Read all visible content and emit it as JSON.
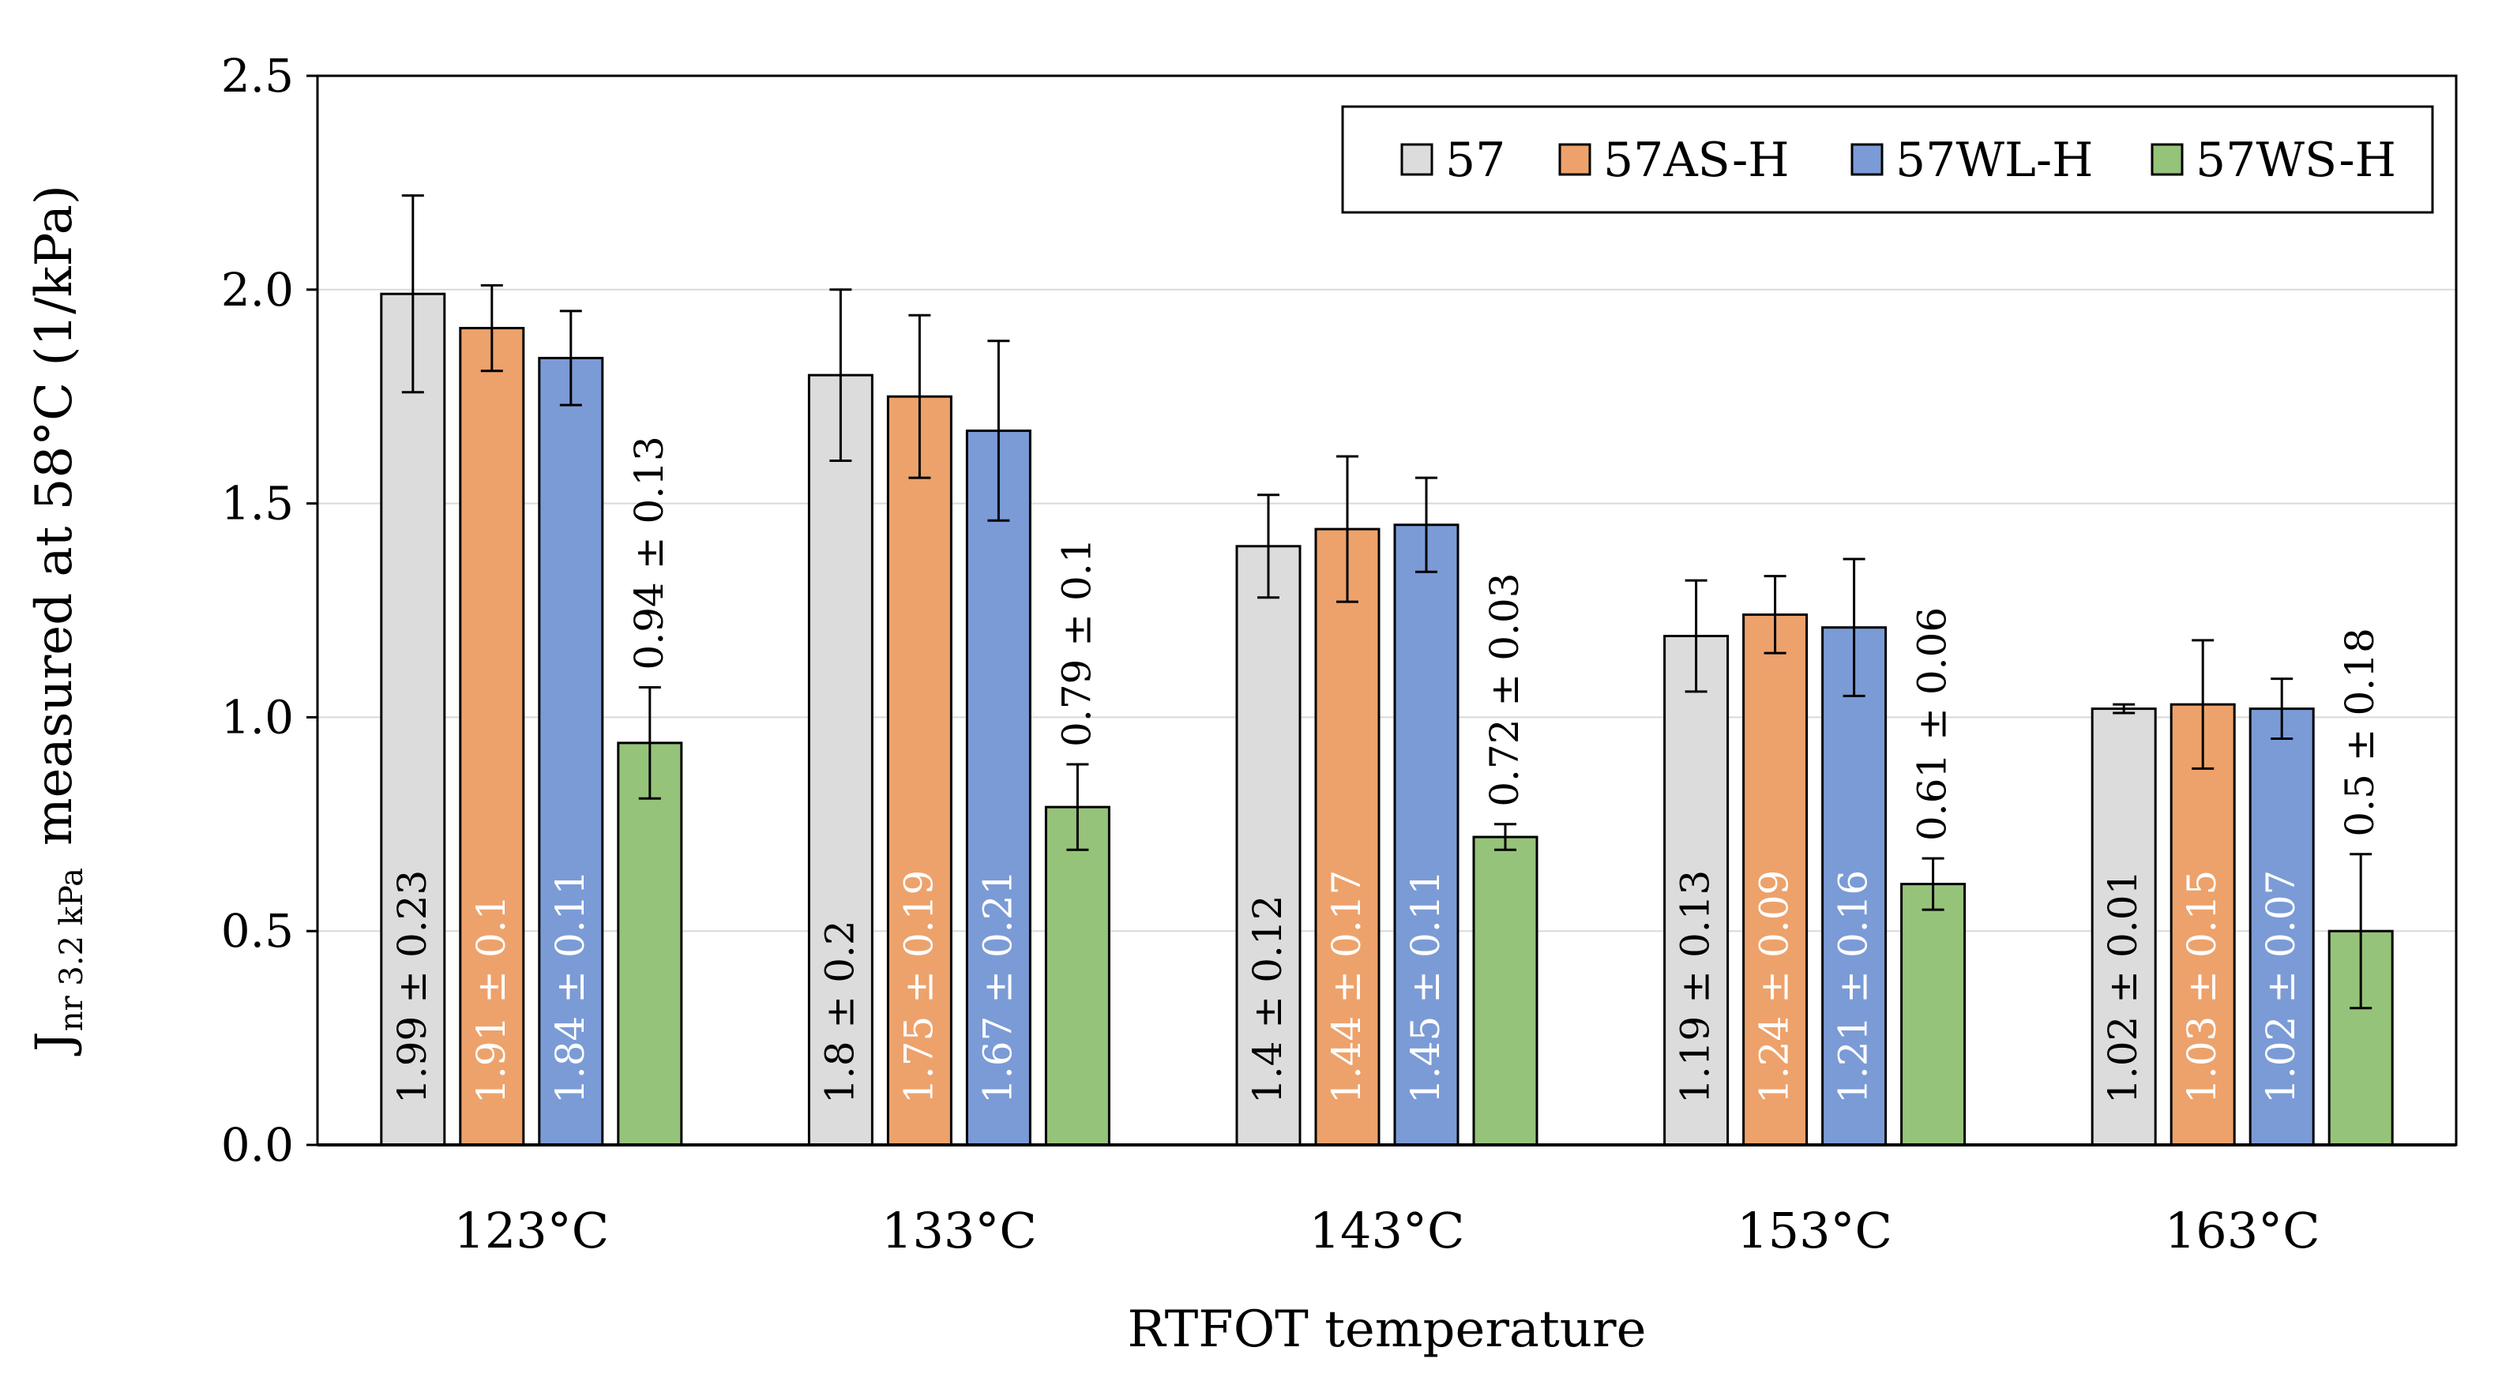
{
  "colors": {
    "s57": "#dcdcdc",
    "s57AS": "#eda26b",
    "s57WL": "#7b9bd6",
    "s57WS": "#96c37a",
    "axis": "#000000",
    "grid": "#d9d9d9"
  },
  "chart_data": {
    "type": "bar",
    "title": "",
    "xlabel": "RTFOT temperature",
    "ylabel": {
      "main": "J",
      "subscript": "nr 3.2 kPa",
      "rest": "measured at 58°C (1/kPa)"
    },
    "ylim": [
      0,
      2.5
    ],
    "yticks": [
      "0.0",
      "0.5",
      "1.0",
      "1.5",
      "2.0",
      "2.5"
    ],
    "grid": true,
    "legend_position": "top-right",
    "categories": [
      "123°C",
      "133°C",
      "143°C",
      "153°C",
      "163°C"
    ],
    "series": [
      {
        "name": "57",
        "color": "#dcdcdc",
        "values": [
          1.99,
          1.8,
          1.4,
          1.19,
          1.02
        ],
        "errors": [
          0.23,
          0.2,
          0.12,
          0.13,
          0.01
        ],
        "labels": [
          "1.99 ± 0.23",
          "1.8 ± 0.2",
          "1.4 ± 0.12",
          "1.19 ± 0.13",
          "1.02 ± 0.01"
        ]
      },
      {
        "name": "57AS-H",
        "color": "#eda26b",
        "values": [
          1.91,
          1.75,
          1.44,
          1.24,
          1.03
        ],
        "errors": [
          0.1,
          0.19,
          0.17,
          0.09,
          0.15
        ],
        "labels": [
          "1.91 ± 0.1",
          "1.75 ± 0.19",
          "1.44 ± 0.17",
          "1.24 ± 0.09",
          "1.03 ± 0.15"
        ]
      },
      {
        "name": "57WL-H",
        "color": "#7b9bd6",
        "values": [
          1.84,
          1.67,
          1.45,
          1.21,
          1.02
        ],
        "errors": [
          0.11,
          0.21,
          0.11,
          0.16,
          0.07
        ],
        "labels": [
          "1.84 ± 0.11",
          "1.67 ± 0.21",
          "1.45 ± 0.11",
          "1.21 ± 0.16",
          "1.02 ± 0.07"
        ]
      },
      {
        "name": "57WS-H",
        "color": "#96c37a",
        "values": [
          0.94,
          0.79,
          0.72,
          0.61,
          0.5
        ],
        "errors": [
          0.13,
          0.1,
          0.03,
          0.06,
          0.18
        ],
        "labels": [
          "0.94 ± 0.13",
          "0.79 ± 0.1",
          "0.72 ± 0.03",
          "0.61 ± 0.06",
          "0.5 ± 0.18"
        ]
      }
    ]
  }
}
